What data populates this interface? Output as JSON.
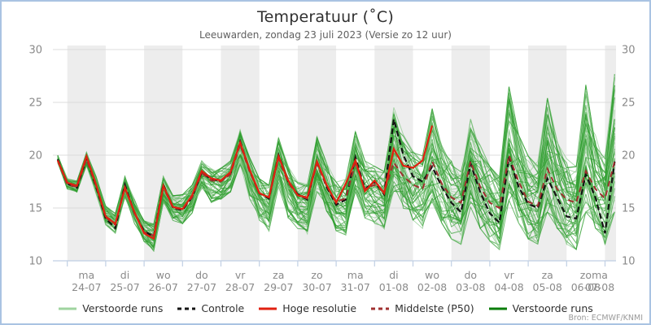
{
  "header": {
    "title": "Temperatuur (˚C)",
    "subtitle": "Leeuwarden, zondag 23 juli 2023 (Versie zo 12 uur)"
  },
  "source_note": "Bron: ECMWF/KNMI",
  "colors": {
    "border": "#a9c3e2",
    "stripe": "#ededed",
    "grid": "#dcdcdc",
    "axis": "#c0cfe4",
    "tick_label": "#8a8a8a",
    "ensemble": "#2f9e2f",
    "ensemble_light": "#8cc98c",
    "ensemble_dark": "#0b7d0b",
    "control": "#131313",
    "hires": "#e02010",
    "p50": "#a03030"
  },
  "legend": {
    "items": [
      {
        "label": "Verstoorde runs",
        "color": "#9fd49f",
        "dash": "",
        "width": 3
      },
      {
        "label": "Controle",
        "color": "#131313",
        "dash": "5,4",
        "width": 3
      },
      {
        "label": "Hoge resolutie",
        "color": "#e02010",
        "dash": "",
        "width": 3
      },
      {
        "label": "Middelste (P50)",
        "color": "#a03030",
        "dash": "5,4",
        "width": 3
      },
      {
        "label": "Verstoorde runs",
        "color": "#0b7d0b",
        "dash": "",
        "width": 3
      }
    ]
  },
  "chart_data": {
    "type": "line",
    "title": "Temperatuur (˚C)",
    "subtitle": "Leeuwarden, zondag 23 juli 2023 (Versie zo 12 uur)",
    "xlabel": "",
    "ylabel": "",
    "ylim": [
      10,
      30
    ],
    "yticks": [
      10,
      15,
      20,
      25,
      30
    ],
    "y_axis_sides": [
      "left",
      "right"
    ],
    "grid": "horizontal",
    "background": "alternating daily stripes, shaded days start at ma 24-07",
    "legend_position": "bottom center",
    "time_start": "zo 23-07 18:00",
    "step_hours": 6,
    "n_points": 59,
    "x_day_ticks": [
      {
        "day": "ma",
        "date": "24-07"
      },
      {
        "day": "di",
        "date": "25-07"
      },
      {
        "day": "wo",
        "date": "26-07"
      },
      {
        "day": "do",
        "date": "27-07"
      },
      {
        "day": "vr",
        "date": "28-07"
      },
      {
        "day": "za",
        "date": "29-07"
      },
      {
        "day": "zo",
        "date": "30-07"
      },
      {
        "day": "ma",
        "date": "31-07"
      },
      {
        "day": "di",
        "date": "01-08"
      },
      {
        "day": "wo",
        "date": "02-08"
      },
      {
        "day": "do",
        "date": "03-08"
      },
      {
        "day": "vr",
        "date": "04-08"
      },
      {
        "day": "za",
        "date": "05-08"
      },
      {
        "day": "zo",
        "date": "06-08"
      },
      {
        "day": "ma",
        "date": "07-08"
      }
    ],
    "series": [
      {
        "name": "Controle",
        "style": "dashed-black",
        "values": [
          19.6,
          17.3,
          16.9,
          19.7,
          17.0,
          14.0,
          13.1,
          17.2,
          14.5,
          12.8,
          12.3,
          17.2,
          15.0,
          14.8,
          16.0,
          18.4,
          17.7,
          17.6,
          18.3,
          21.3,
          18.5,
          16.4,
          15.9,
          20.0,
          17.5,
          16.3,
          15.8,
          19.4,
          17.0,
          15.3,
          15.8,
          19.8,
          16.8,
          17.5,
          16.3,
          23.4,
          20.0,
          18.0,
          17.5,
          18.9,
          17.0,
          15.5,
          14.6,
          19.2,
          16.5,
          14.5,
          13.6,
          19.8,
          17.0,
          15.4,
          15.0,
          17.8,
          16.0,
          14.2,
          14.0,
          18.2,
          16.0,
          12.6,
          19.4
        ]
      },
      {
        "name": "Hoge resolutie",
        "style": "solid-red",
        "note": "ends 02-08 12:00",
        "values": [
          19.5,
          17.4,
          17.1,
          19.9,
          17.2,
          14.2,
          13.5,
          16.9,
          14.6,
          12.6,
          12.1,
          17.1,
          15.1,
          14.9,
          16.2,
          18.5,
          17.8,
          17.6,
          18.4,
          21.2,
          18.6,
          16.4,
          16.0,
          19.9,
          17.6,
          16.2,
          16.0,
          19.4,
          17.2,
          15.5,
          17.3,
          19.5,
          16.6,
          17.6,
          16.4,
          20.6,
          19.0,
          18.8,
          19.5,
          22.8
        ]
      },
      {
        "name": "Middelste (P50)",
        "style": "dashed-darkred",
        "values": [
          19.5,
          17.2,
          17.0,
          19.6,
          17.1,
          14.1,
          13.4,
          17.0,
          14.5,
          12.7,
          12.4,
          17.0,
          15.0,
          14.9,
          16.0,
          18.3,
          17.6,
          17.5,
          18.2,
          21.0,
          18.4,
          16.4,
          16.0,
          19.7,
          17.4,
          16.2,
          15.9,
          19.2,
          17.1,
          15.6,
          15.9,
          19.3,
          16.8,
          17.2,
          16.5,
          19.3,
          18.0,
          17.2,
          16.8,
          19.4,
          17.3,
          16.0,
          15.5,
          19.4,
          17.0,
          15.5,
          15.0,
          20.0,
          17.5,
          15.6,
          15.2,
          18.7,
          16.8,
          15.8,
          15.5,
          18.5,
          16.8,
          15.9,
          19.4
        ]
      }
    ],
    "ensemble": {
      "name": "Verstoorde runs",
      "member_count": 50,
      "envelope_min": [
        19.3,
        16.8,
        16.5,
        19.0,
        16.3,
        13.4,
        12.6,
        16.0,
        13.5,
        11.8,
        10.9,
        15.5,
        13.8,
        13.5,
        14.5,
        16.8,
        15.5,
        15.8,
        16.5,
        19.0,
        15.8,
        13.8,
        12.8,
        17.0,
        14.0,
        13.0,
        12.5,
        16.5,
        14.5,
        12.8,
        12.4,
        16.5,
        14.0,
        13.5,
        13.0,
        16.5,
        14.8,
        13.8,
        13.0,
        15.5,
        13.5,
        12.0,
        11.5,
        15.0,
        13.0,
        11.8,
        11.0,
        15.0,
        13.5,
        12.0,
        11.5,
        14.5,
        13.0,
        11.5,
        11.0,
        14.5,
        13.0,
        11.5,
        14.5
      ],
      "envelope_max": [
        20.0,
        17.8,
        17.6,
        20.3,
        18.0,
        15.2,
        14.5,
        18.0,
        15.8,
        13.8,
        13.5,
        18.0,
        16.2,
        16.3,
        17.2,
        19.5,
        18.8,
        18.8,
        19.5,
        22.4,
        19.8,
        17.8,
        17.2,
        21.7,
        19.0,
        17.5,
        17.3,
        21.8,
        19.3,
        17.5,
        17.8,
        22.3,
        19.5,
        19.0,
        18.5,
        24.6,
        22.0,
        20.5,
        20.0,
        24.5,
        21.0,
        19.5,
        18.5,
        23.5,
        21.0,
        19.0,
        18.0,
        26.6,
        22.0,
        20.0,
        19.5,
        25.5,
        21.5,
        19.8,
        19.0,
        26.8,
        22.0,
        20.0,
        27.8
      ]
    }
  }
}
